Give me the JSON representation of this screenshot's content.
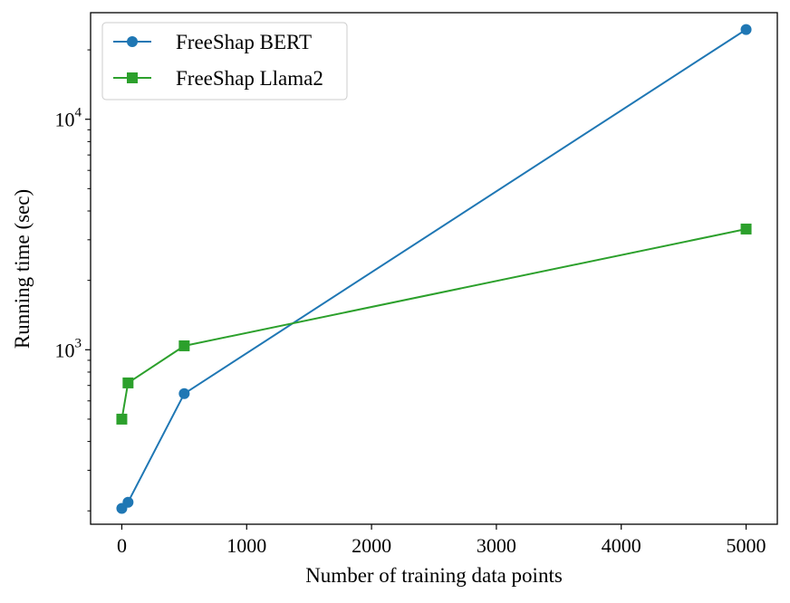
{
  "chart_data": {
    "type": "line",
    "title": "",
    "xlabel": "Number of training data points",
    "ylabel": "Running time (sec)",
    "xlim": [
      -250,
      5250
    ],
    "ylim": [
      175,
      29000
    ],
    "yscale": "log",
    "grid": false,
    "legend_position": "top-left",
    "x_ticks": [
      0,
      1000,
      2000,
      3000,
      4000,
      5000
    ],
    "x_tick_labels": [
      "0",
      "1000",
      "2000",
      "3000",
      "4000",
      "5000"
    ],
    "y_major_ticks": [
      {
        "value": 1000,
        "base": "10",
        "exp": "3"
      },
      {
        "value": 10000,
        "base": "10",
        "exp": "4"
      }
    ],
    "y_minor_ticks": [
      200,
      300,
      400,
      500,
      600,
      700,
      800,
      900,
      2000,
      3000,
      4000,
      5000,
      6000,
      7000,
      8000,
      9000,
      20000
    ],
    "series": [
      {
        "name": "FreeShap BERT",
        "color": "#1f77b4",
        "marker": "circle",
        "x": [
          0,
          50,
          500,
          5000
        ],
        "y": [
          205,
          218,
          645,
          24500
        ]
      },
      {
        "name": "FreeShap Llama2",
        "color": "#2ca02c",
        "marker": "square",
        "x": [
          0,
          50,
          500,
          5000
        ],
        "y": [
          500,
          718,
          1040,
          3340
        ]
      }
    ]
  }
}
